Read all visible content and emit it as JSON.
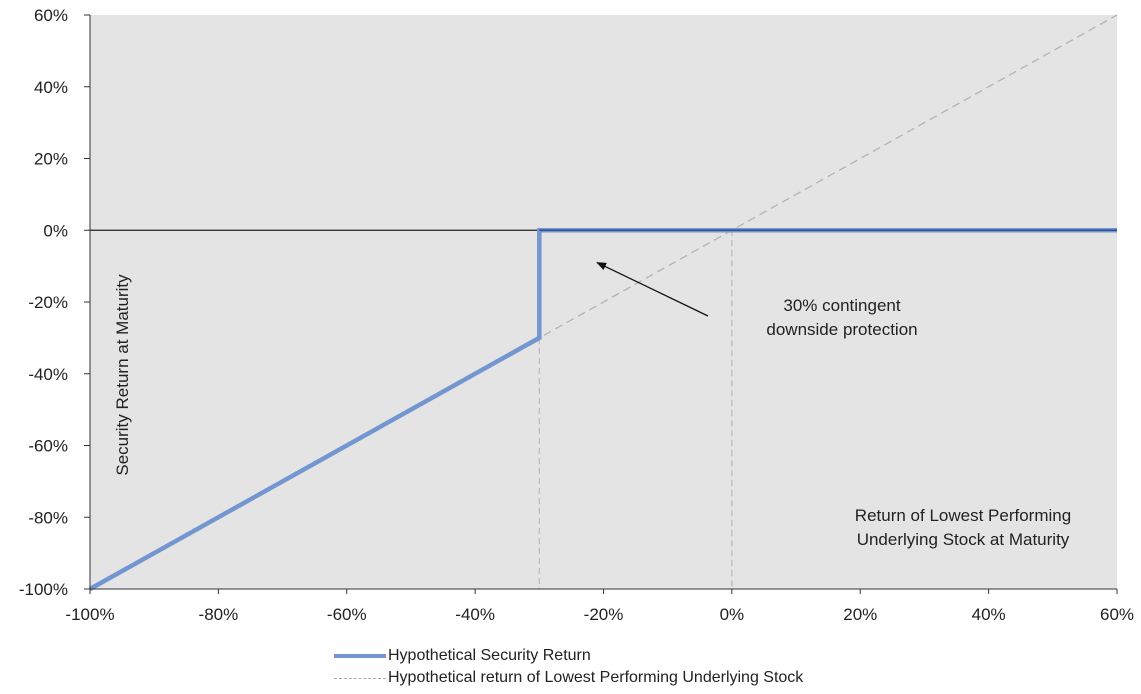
{
  "chart_data": {
    "type": "line",
    "title": "",
    "xlabel": "Return of Lowest Performing Underlying Stock at Maturity",
    "xlabel_lines": [
      "Return of Lowest Performing",
      "Underlying Stock at Maturity"
    ],
    "ylabel": "Security Return at Maturity",
    "xlim": [
      -100,
      60
    ],
    "ylim": [
      -100,
      60
    ],
    "x_ticks": [
      -100,
      -80,
      -60,
      -40,
      -20,
      0,
      20,
      40,
      60
    ],
    "y_ticks": [
      -100,
      -80,
      -60,
      -40,
      -20,
      0,
      20,
      40,
      60
    ],
    "x_tick_labels": [
      "-100%",
      "-80%",
      "-60%",
      "-40%",
      "-20%",
      "0%",
      "20%",
      "40%",
      "60%"
    ],
    "y_tick_labels": [
      "-100%",
      "-80%",
      "-60%",
      "-40%",
      "-20%",
      "0%",
      "20%",
      "40%",
      "60%"
    ],
    "grid": false,
    "legend_position": "bottom",
    "series": [
      {
        "name": "Hypothetical Security Return",
        "style": "solid",
        "color": "#7396d1",
        "x": [
          -100,
          -30,
          -30,
          60
        ],
        "y": [
          -100,
          -30,
          0,
          0
        ]
      },
      {
        "name": "Hypothetical return of Lowest Performing Underlying Stock",
        "style": "dashed",
        "color": "#b3b3b3",
        "x": [
          -100,
          60
        ],
        "y": [
          -100,
          60
        ]
      }
    ],
    "reference_lines": [
      {
        "orientation": "vertical",
        "x": -30,
        "style": "dashed"
      },
      {
        "orientation": "vertical",
        "x": 0,
        "style": "dashed"
      },
      {
        "orientation": "horizontal",
        "y": 0,
        "style": "solid"
      }
    ],
    "annotation": {
      "lines": [
        "30% contingent",
        "downside protection"
      ],
      "arrow_to": {
        "x": -21,
        "y": -9
      }
    }
  },
  "colors": {
    "plot_background": "#e4e4e4",
    "primary_series": "#7396d1",
    "primary_series_dark": "#304f8e",
    "dashed_series": "#b3b3b3",
    "axis": "#333333"
  }
}
